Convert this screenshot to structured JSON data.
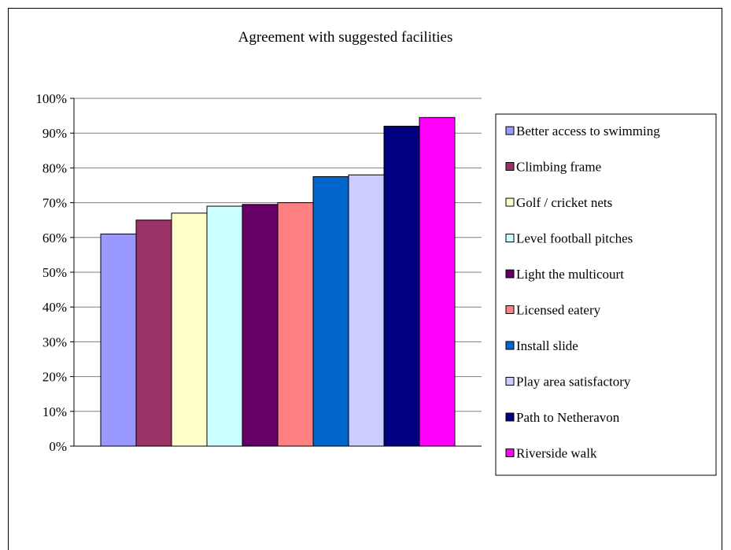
{
  "chart_data": {
    "type": "bar",
    "title": "Agreement with suggested facilities",
    "xlabel": "",
    "ylabel": "",
    "ylim": [
      0,
      1
    ],
    "y_ticks": [
      "0%",
      "10%",
      "20%",
      "30%",
      "40%",
      "50%",
      "60%",
      "70%",
      "80%",
      "90%",
      "100%"
    ],
    "grid": "horizontal",
    "legend_position": "right",
    "series": [
      {
        "name": "Better access to swimming",
        "value": 0.61,
        "color": "#9999FF"
      },
      {
        "name": "Climbing frame",
        "value": 0.65,
        "color": "#993366"
      },
      {
        "name": "Golf / cricket nets",
        "value": 0.67,
        "color": "#FFFFCC"
      },
      {
        "name": "Level football pitches",
        "value": 0.69,
        "color": "#CCFFFF"
      },
      {
        "name": "Light the multicourt",
        "value": 0.695,
        "color": "#660066"
      },
      {
        "name": "Licensed eatery",
        "value": 0.7,
        "color": "#FF8080"
      },
      {
        "name": "Install slide",
        "value": 0.775,
        "color": "#0066CC"
      },
      {
        "name": "Play area satisfactory",
        "value": 0.78,
        "color": "#CCCCFF"
      },
      {
        "name": "Path to Netheravon",
        "value": 0.92,
        "color": "#000080"
      },
      {
        "name": "Riverside walk",
        "value": 0.945,
        "color": "#FF00FF"
      }
    ]
  }
}
